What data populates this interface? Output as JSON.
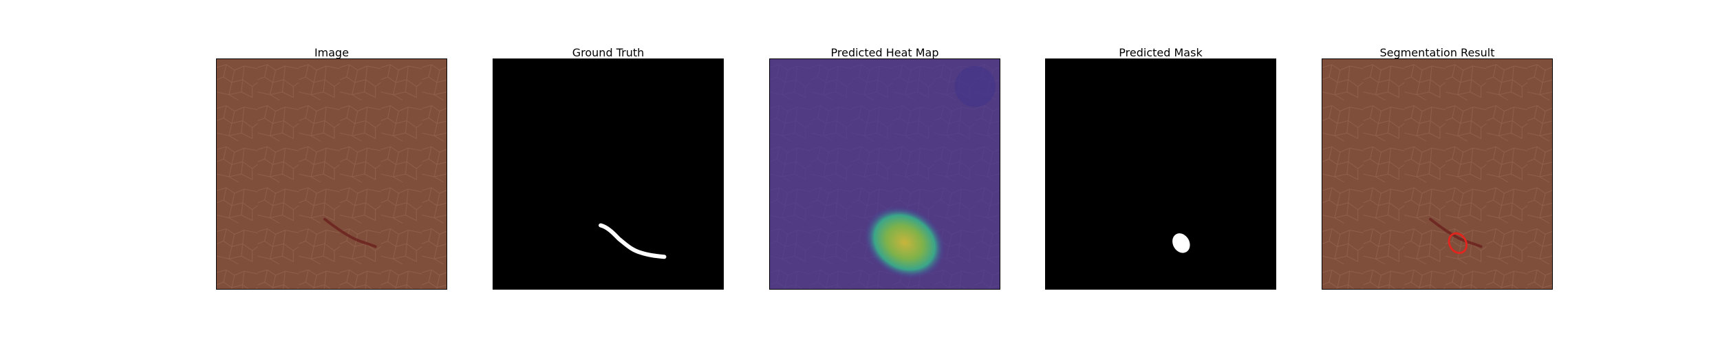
{
  "panels": [
    {
      "title": "Image"
    },
    {
      "title": "Ground Truth"
    },
    {
      "title": "Predicted Heat Map"
    },
    {
      "title": "Predicted Mask"
    },
    {
      "title": "Segmentation Result"
    }
  ],
  "colors": {
    "leather": "#7a4a38",
    "leather_light": "#8a5a45",
    "mask_background": "#000000",
    "mask_foreground": "#ffffff",
    "heatmap_low": "#45399a",
    "heatmap_mid": "#3aa58a",
    "heatmap_high": "#c8b43c",
    "defect": "#6a1c1c",
    "contour": "#e0261e"
  }
}
